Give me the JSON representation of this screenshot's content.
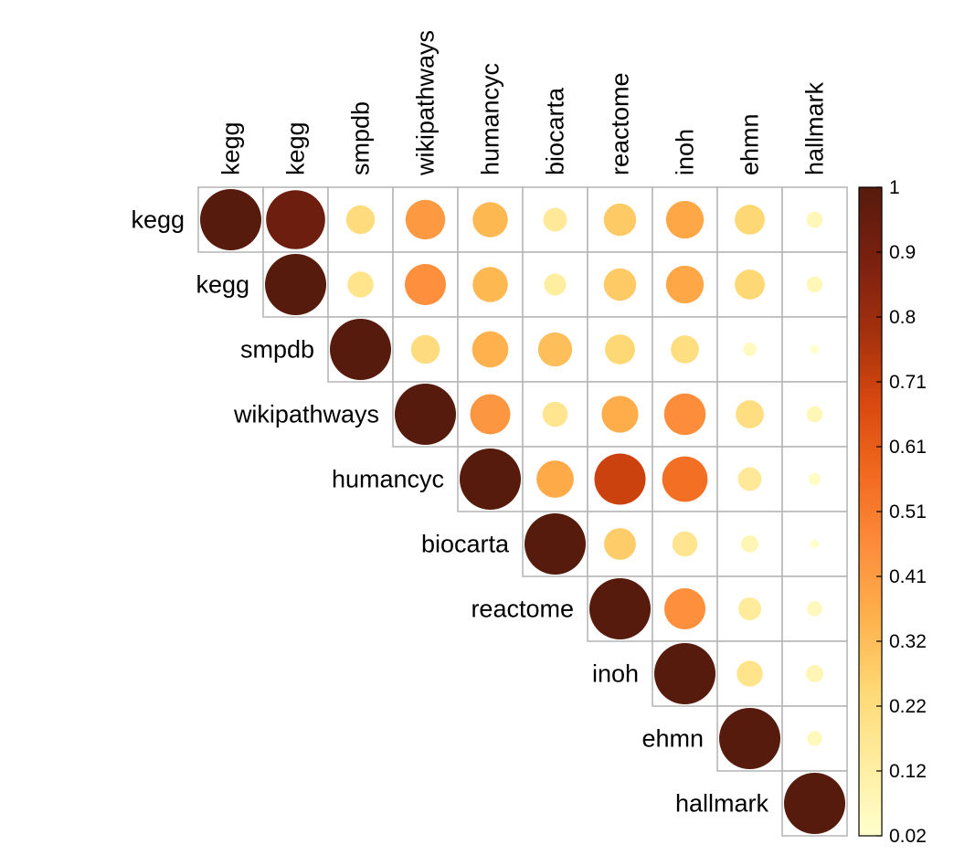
{
  "chart_data": {
    "type": "heatmap",
    "subtype": "correlation-circle-upper-triangle",
    "labels": [
      "kegg",
      "kegg",
      "smpdb",
      "wikipathways",
      "humancyc",
      "biocarta",
      "reactome",
      "inoh",
      "ehmn",
      "hallmark"
    ],
    "values": [
      [
        1.0,
        0.93,
        0.22,
        0.42,
        0.33,
        0.15,
        0.28,
        0.38,
        0.24,
        0.07
      ],
      [
        null,
        1.0,
        0.18,
        0.45,
        0.33,
        0.13,
        0.28,
        0.38,
        0.24,
        0.07
      ],
      [
        null,
        null,
        1.0,
        0.22,
        0.35,
        0.31,
        0.24,
        0.21,
        0.05,
        0.02
      ],
      [
        null,
        null,
        null,
        1.0,
        0.43,
        0.17,
        0.36,
        0.46,
        0.21,
        0.07
      ],
      [
        null,
        null,
        null,
        null,
        1.0,
        0.37,
        0.7,
        0.55,
        0.15,
        0.04
      ],
      [
        null,
        null,
        null,
        null,
        null,
        1.0,
        0.27,
        0.17,
        0.08,
        0.02
      ],
      [
        null,
        null,
        null,
        null,
        null,
        null,
        1.0,
        0.45,
        0.14,
        0.06
      ],
      [
        null,
        null,
        null,
        null,
        null,
        null,
        null,
        1.0,
        0.18,
        0.08
      ],
      [
        null,
        null,
        null,
        null,
        null,
        null,
        null,
        null,
        1.0,
        0.06
      ],
      [
        null,
        null,
        null,
        null,
        null,
        null,
        null,
        null,
        null,
        1.0
      ]
    ],
    "color_scale": {
      "range": [
        0.02,
        1
      ],
      "ticks": [
        "1",
        "0.9",
        "0.8",
        "0.71",
        "0.61",
        "0.51",
        "0.41",
        "0.32",
        "0.22",
        "0.12",
        "0.02"
      ],
      "colors": [
        "#ffffcc",
        "#ffeda0",
        "#fed976",
        "#feb24c",
        "#fd8d3c",
        "#f26a1f",
        "#d9480f",
        "#a3300e",
        "#7a2010",
        "#561b0c"
      ]
    },
    "grid": true,
    "legend": "right"
  }
}
